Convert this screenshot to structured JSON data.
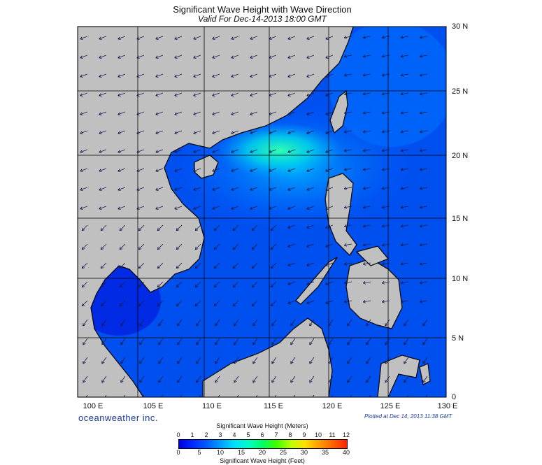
{
  "header": {
    "title": "Significant Wave Height with Wave Direction",
    "subtitle": "Valid For Dec-14-2013 18:00 GMT"
  },
  "map": {
    "lon_labels": [
      "100 E",
      "105 E",
      "110 E",
      "115 E",
      "120 E",
      "125 E",
      "130 E"
    ],
    "lat_labels": [
      "30 N",
      "25 N",
      "20 N",
      "15 N",
      "10 N",
      "5 N",
      "0"
    ],
    "land_color": "#c0c0c0",
    "sea_color": "#0050f0"
  },
  "footer": {
    "brand": "oceanweather inc.",
    "plotted": "Plotted at Dec 14, 2013 11:38 GMT"
  },
  "legend": {
    "title_meters": "Significant Wave Height (Meters)",
    "title_feet": "Significant Wave Height (Feet)",
    "meters_ticks": [
      "0",
      "1",
      "2",
      "3",
      "4",
      "5",
      "6",
      "7",
      "8",
      "9",
      "10",
      "11",
      "12"
    ],
    "feet_ticks": [
      "0",
      "5",
      "10",
      "15",
      "20",
      "25",
      "30",
      "35",
      "40"
    ]
  }
}
